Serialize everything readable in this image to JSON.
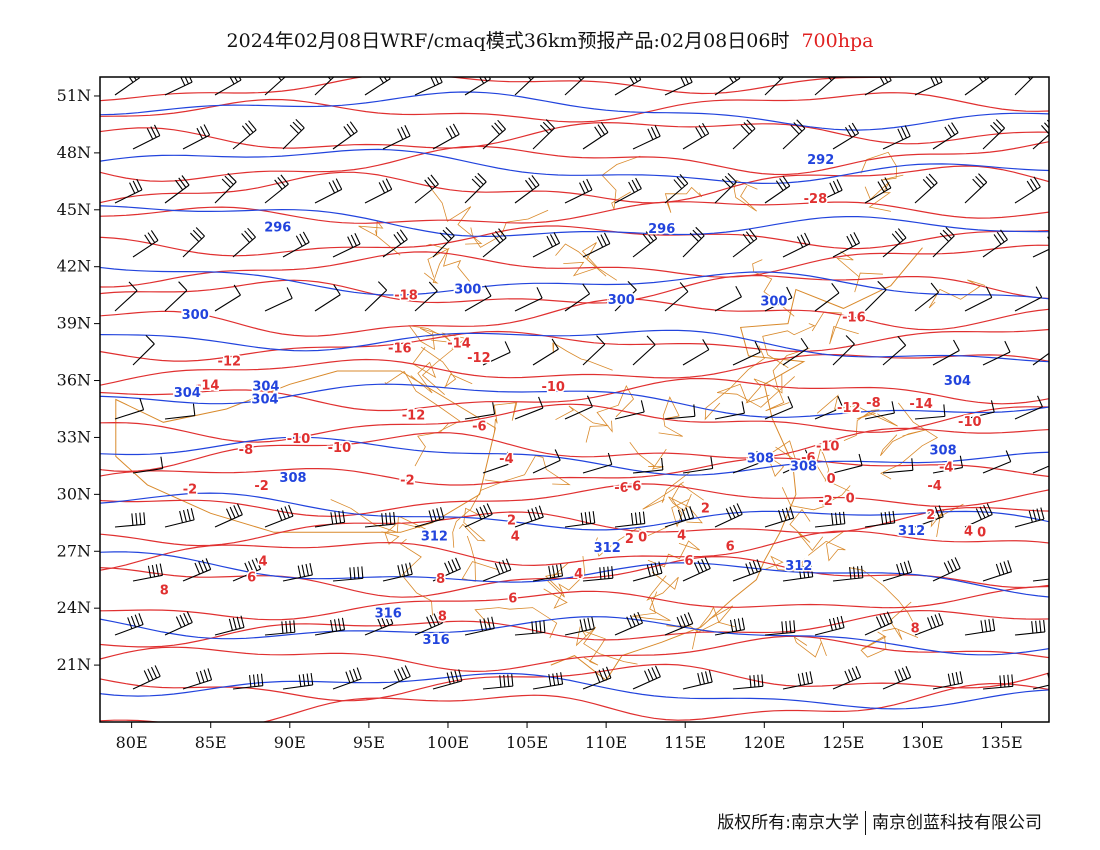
{
  "title": {
    "text": "2024年02月08日WRF/cmaq模式36km预报产品:02月08日06时",
    "level": "700hpa"
  },
  "footer": {
    "copyright": "版权所有:南京大学",
    "company": "南京创蓝科技有限公司"
  },
  "colors": {
    "temperature_contour": "#e03030",
    "height_contour": "#2244dd",
    "wind_barb": "#000000",
    "boundary": "#d98a2c",
    "frame": "#000000"
  },
  "map": {
    "projection": "lat-lon",
    "lon_range": [
      78,
      138
    ],
    "lat_range": [
      18,
      52
    ],
    "lon_ticks": [
      "80E",
      "85E",
      "90E",
      "95E",
      "100E",
      "105E",
      "110E",
      "115E",
      "120E",
      "125E",
      "130E",
      "135E"
    ],
    "lat_ticks": [
      "21N",
      "24N",
      "27N",
      "30N",
      "33N",
      "36N",
      "39N",
      "42N",
      "45N",
      "48N",
      "51N"
    ],
    "temperature_labels": [
      "-28",
      "-18",
      "-16",
      "-16",
      "-14",
      "-14",
      "-14",
      "-12",
      "-12",
      "-12",
      "-12",
      "-10",
      "-10",
      "-10",
      "-10",
      "-10",
      "-8",
      "-8",
      "-6",
      "-6",
      "-6",
      "-6",
      "-4",
      "-4",
      "-4",
      "-2",
      "-2",
      "-2",
      "-2",
      "0",
      "0",
      "0",
      "0",
      "2",
      "2",
      "2",
      "2",
      "4",
      "4",
      "4",
      "4",
      "4",
      "6",
      "6",
      "6",
      "6",
      "8",
      "8",
      "8",
      "8"
    ],
    "height_labels": [
      "292",
      "296",
      "296",
      "300",
      "300",
      "300",
      "300",
      "304",
      "304",
      "304",
      "304",
      "308",
      "308",
      "308",
      "308",
      "312",
      "312",
      "312",
      "312",
      "316",
      "316"
    ]
  }
}
